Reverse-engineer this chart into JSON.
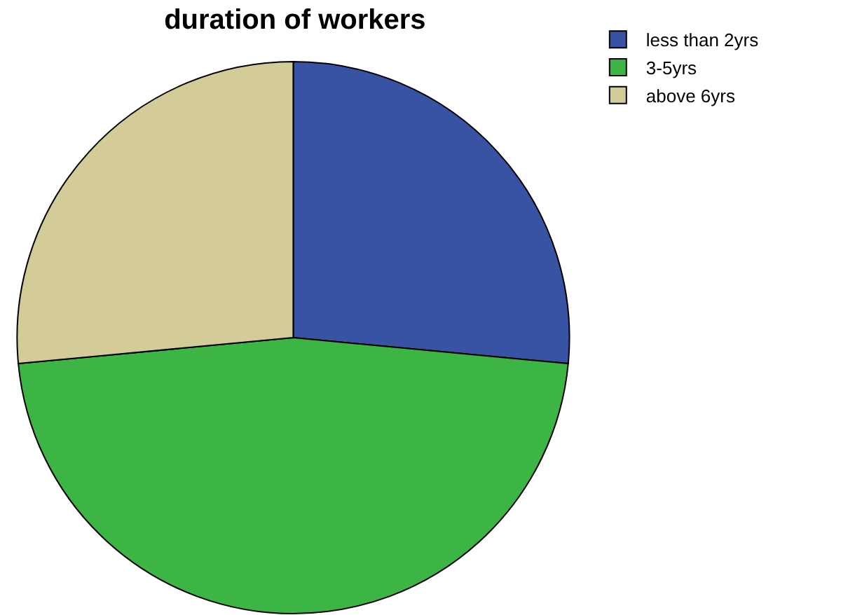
{
  "chart_data": {
    "type": "pie",
    "title": "duration of workers",
    "categories": [
      "less than 2yrs",
      "3-5yrs",
      "above 6yrs"
    ],
    "values": [
      26.5,
      47,
      26.5
    ],
    "colors": [
      "#3953a4",
      "#3cb544",
      "#d4cc98"
    ],
    "legend": "top right"
  }
}
